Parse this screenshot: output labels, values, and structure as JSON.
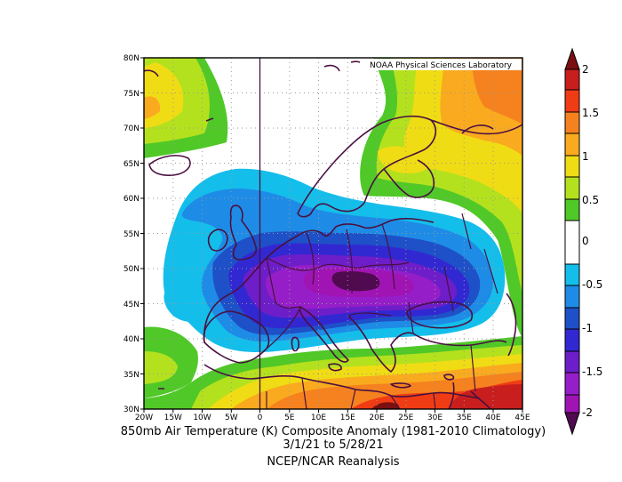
{
  "credit": "NOAA Physical Sciences Laboratory",
  "caption": {
    "line1": "850mb Air Temperature (K) Composite Anomaly (1981-2010 Climatology)",
    "line2": "3/1/21  to 5/28/21",
    "line3": "NCEP/NCAR Reanalysis"
  },
  "map": {
    "lat_labels": [
      "80N",
      "75N",
      "70N",
      "65N",
      "60N",
      "55N",
      "50N",
      "45N",
      "40N",
      "35N",
      "30N"
    ],
    "lon_labels": [
      "20W",
      "15W",
      "10W",
      "5W",
      "0",
      "5E",
      "10E",
      "15E",
      "20E",
      "25E",
      "30E",
      "35E",
      "40E",
      "45E"
    ],
    "lat_range": [
      30,
      80
    ],
    "lon_range": [
      -20,
      45
    ]
  },
  "colorbar": {
    "tick_labels": [
      "2",
      "1.5",
      "1",
      "0.5",
      "0",
      "-0.5",
      "-1",
      "-1.5",
      "-2"
    ],
    "colors": {
      "c_2_0": "#7a1010",
      "c_1_75": "#c81e1e",
      "c_1_5": "#f03c14",
      "c_1_25": "#f5821e",
      "c_1_0": "#faaa1e",
      "c_0_75": "#f0dc14",
      "c_0_5": "#b4e11e",
      "c_0_25": "#50c828",
      "c_0": "#ffffff",
      "c_m0_25": "#14beeb",
      "c_m0_5": "#1e8ce6",
      "c_m0_75": "#1e50c8",
      "c_m1_0": "#3228d2",
      "c_m1_25": "#6e1ec8",
      "c_m1_5": "#961ec8",
      "c_m1_75": "#a014b4",
      "c_m2_0": "#500a50"
    }
  }
}
